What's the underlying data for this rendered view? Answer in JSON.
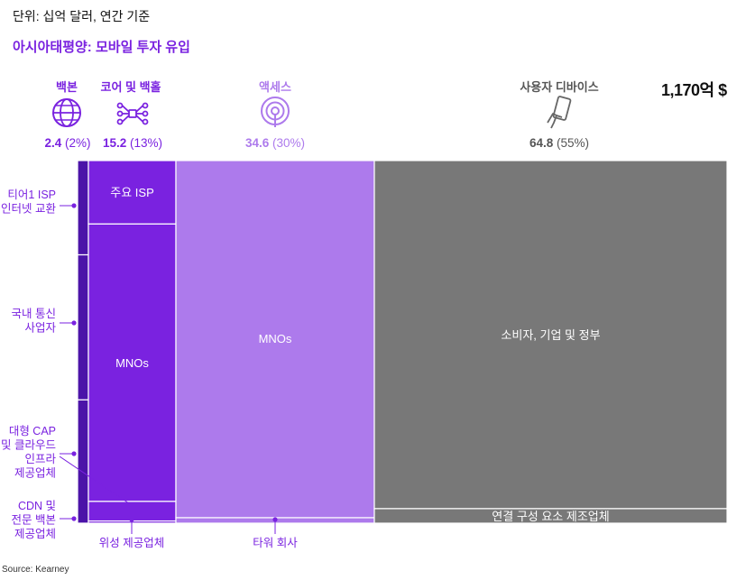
{
  "units": "단위: 십억 달러, 연간 기준",
  "title": "아시아태평양: 모바일 투자 유입",
  "total": "1,170억 $",
  "source": "Source: Kearney",
  "colors": {
    "backbone": "#4b13a8",
    "core": "#7a22e0",
    "access": "#ad7aec",
    "devices": "#787878",
    "grid": "#ffffff"
  },
  "segments": [
    {
      "name": "백본",
      "value_label": "2.4",
      "pct_label": "(2%)",
      "icon": "globe-icon",
      "color": "#7a22e0"
    },
    {
      "name": "코어 및 백홀",
      "value_label": "15.2",
      "pct_label": "(13%)",
      "icon": "network-icon",
      "color": "#7a22e0"
    },
    {
      "name": "액세스",
      "value_label": "34.6",
      "pct_label": "(30%)",
      "icon": "antenna-icon",
      "color": "#ad7aec"
    },
    {
      "name": "사용자 디바이스",
      "value_label": "64.8",
      "pct_label": "(55%)",
      "icon": "phone-hand-icon",
      "color": "#555555"
    }
  ],
  "left_labels": [
    {
      "text": [
        "티어1 ISP",
        "인터넷 교환"
      ]
    },
    {
      "text": [
        "국내 통신",
        "사업자"
      ]
    },
    {
      "text": [
        "대형 CAP",
        "및 클라우드",
        "인프라",
        "제공업체"
      ]
    },
    {
      "text": [
        "CDN 및",
        "전문 백본",
        "제공업체"
      ]
    }
  ],
  "bottom_labels": [
    {
      "text": "위성 제공업체"
    },
    {
      "text": "타워 회사"
    }
  ],
  "chart_data": {
    "type": "mekko",
    "unit": "십억 달러",
    "total": 117.0,
    "columns": [
      {
        "name": "백본",
        "value": 2.4,
        "share": 0.02,
        "blocks": [
          {
            "label": "티어1 ISP 인터넷 교환",
            "share": 0.26
          },
          {
            "label": "국내 통신 사업자",
            "share": 0.4
          },
          {
            "label": "대형 CAP 및 클라우드 인프라 제공업체",
            "share": 0.34
          },
          {
            "label": "CDN 및 전문 백본 제공업체",
            "share": 0.0
          }
        ]
      },
      {
        "name": "코어 및 백홀",
        "value": 15.2,
        "share": 0.13,
        "blocks": [
          {
            "label": "주요 ISP",
            "share": 0.175
          },
          {
            "label": "MNOs",
            "share": 0.765
          },
          {
            "label": "대형 CAP 및 클라우드 인프라 제공업체",
            "share": 0.054
          },
          {
            "label": "위성 제공업체",
            "share": 0.006
          }
        ]
      },
      {
        "name": "액세스",
        "value": 34.6,
        "share": 0.3,
        "blocks": [
          {
            "label": "MNOs",
            "share": 0.985
          },
          {
            "label": "타워 회사",
            "share": 0.015
          }
        ]
      },
      {
        "name": "사용자 디바이스",
        "value": 64.8,
        "share": 0.55,
        "blocks": [
          {
            "label": "소비자, 기업 및 정부",
            "share": 0.96
          },
          {
            "label": "연결 구성 요소 제조업체",
            "share": 0.04
          }
        ]
      }
    ]
  }
}
